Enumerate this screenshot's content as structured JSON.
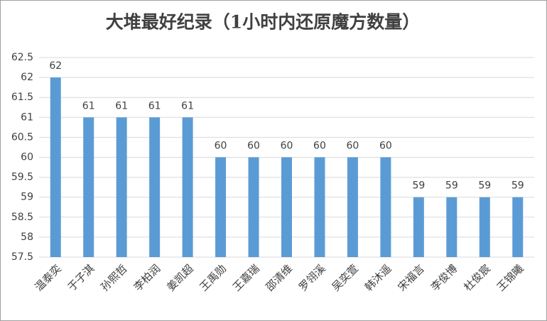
{
  "chart_data": {
    "type": "bar",
    "title": "大堆最好纪录（1小时内还原魔方数量）",
    "categories": [
      "温泰奕",
      "于子淇",
      "孙熙哲",
      "李柏润",
      "姜凯超",
      "王禹勋",
      "王嘉瑞",
      "邵清维",
      "罗翎溪",
      "吴奕萱",
      "韩沐遥",
      "宋福言",
      "李俊博",
      "杜俊宸",
      "王锦曦"
    ],
    "values": [
      62,
      61,
      61,
      61,
      61,
      60,
      60,
      60,
      60,
      60,
      60,
      59,
      59,
      59,
      59
    ],
    "color": "#5b9bd5",
    "ylim": [
      57.5,
      62.5
    ],
    "yticks": [
      57.5,
      58,
      58.5,
      59,
      59.5,
      60,
      60.5,
      61,
      61.5,
      62,
      62.5
    ],
    "grid": true
  }
}
